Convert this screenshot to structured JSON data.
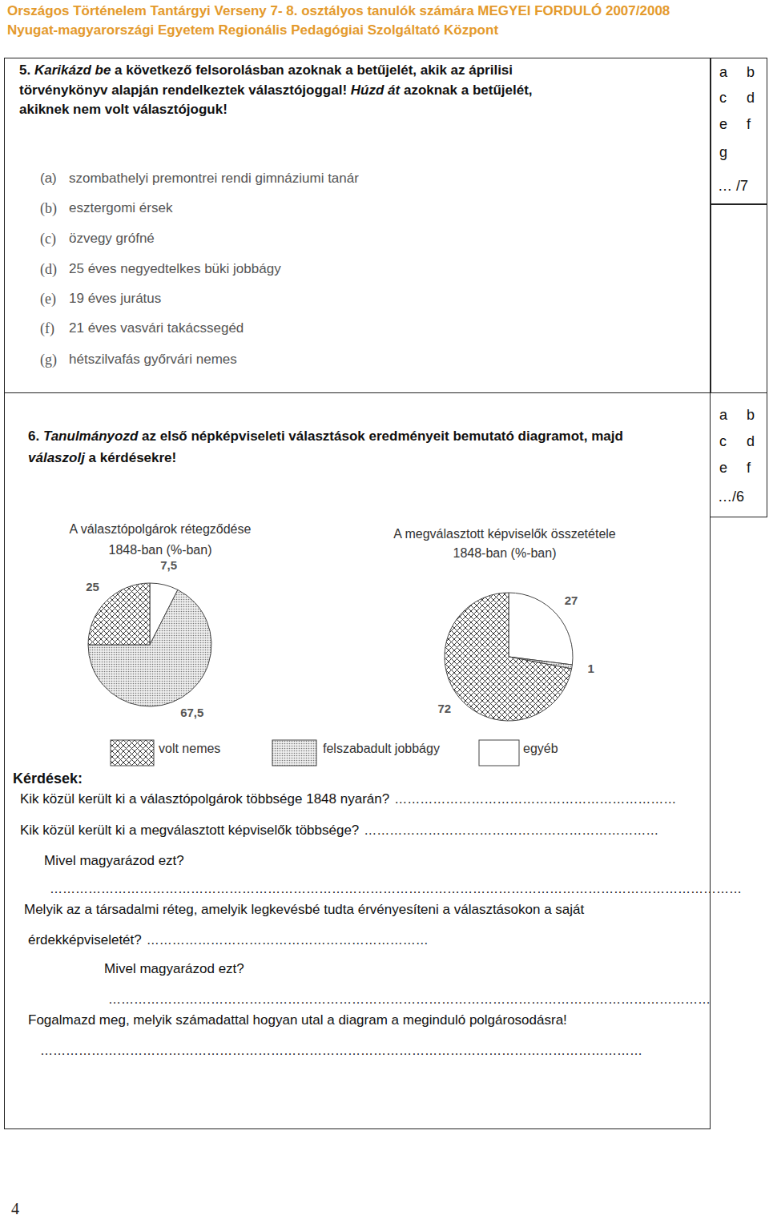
{
  "header": {
    "line1": "Országos Történelem Tantárgyi Verseny 7- 8. osztályos tanulók számára MEGYEI FORDULÓ 2007/2008",
    "line2": "Nyugat-magyarországi Egyetem Regionális Pedagógiai Szolgáltató Központ"
  },
  "task5": {
    "lines": [
      [
        {
          "text": "5. "
        },
        {
          "text": "Karikázd be",
          "em": true
        },
        {
          "text": " a következő felsorolásban azoknak a betűjelét, akik az áprilisi"
        }
      ],
      [
        {
          "text": "törvénykönyv alapján rendelkeztek választójoggal! "
        },
        {
          "text": "Húzd át",
          "em": true
        },
        {
          "text": " azoknak a betűjelét,"
        }
      ],
      [
        {
          "text": "akiknek nem volt választójoguk!"
        }
      ]
    ],
    "items": [
      {
        "letter": "(a)",
        "text": "szombathelyi premontrei rendi gimnáziumi tanár"
      },
      {
        "letter": "(b)",
        "text": "esztergomi érsek"
      },
      {
        "letter": "(c)",
        "text": "özvegy grófné"
      },
      {
        "letter": "(d)",
        "text": "25 éves negyedtelkes büki jobbágy"
      },
      {
        "letter": "(e)",
        "text": "19 éves jurátus"
      },
      {
        "letter": "(f)",
        "text": "21 éves vasvári takácssegéd"
      },
      {
        "letter": "(g)",
        "text": "hétszilvafás győrvári nemes"
      }
    ],
    "score": {
      "rows": [
        [
          "a",
          "b"
        ],
        [
          "c",
          "d"
        ],
        [
          "e",
          "f"
        ],
        [
          "g"
        ]
      ],
      "total": "… /7"
    }
  },
  "task6": {
    "lines": [
      [
        {
          "text": "6. "
        },
        {
          "text": "Tanulmányozd",
          "em": true
        },
        {
          "text": " az első népképviseleti választások eredményeit bemutató diagramot, majd"
        }
      ],
      [
        {
          "text": "válaszolj",
          "em": true
        },
        {
          "text": " a kérdésekre!"
        }
      ]
    ],
    "score": {
      "rows": [
        [
          "a",
          "b"
        ],
        [
          "c",
          "d"
        ],
        [
          "e",
          "f"
        ]
      ],
      "total": "…/6"
    },
    "questions": {
      "heading": "Kérdések:",
      "lines": [
        {
          "text": "Kik közül került ki a választópolgárok többsége 1848 nyarán?",
          "blank": "…………………………………………………………"
        },
        {
          "text": "Kik közül került ki a megválasztott képviselők többsége?",
          "blank": "……………………………………………………………"
        },
        {
          "text": "Mivel magyarázod ezt?"
        },
        {
          "blank": "………………………………………………………………………………………………………………………………………………"
        },
        {
          "text": "Melyik az a társadalmi réteg, amelyik  legkevésbé tudta érvényesíteni a választásokon a saját"
        },
        {
          "text": "érdekképviseletét?",
          "blank": "…………………………………………………………"
        },
        {
          "text": "Mivel magyarázod ezt?"
        },
        {
          "blank": "……………………………………………………………………………………………………………………………"
        },
        {
          "text": "Fogalmazd meg, melyik számadattal hogyan utal a diagram a meginduló polgárosodásra!"
        },
        {
          "blank": "……………………………………………………………………………………………………………………………"
        }
      ]
    }
  },
  "chart_data": [
    {
      "type": "pie",
      "title": "A választópolgárok rétegződése",
      "subtitle": "1848-ban (%-ban)",
      "categories": [
        "volt nemes",
        "felszabadult jobbágy",
        "egyéb"
      ],
      "values": [
        25,
        67.5,
        7.5
      ],
      "value_labels": [
        "25",
        "67,5",
        "7,5"
      ],
      "data_labels": true,
      "legend": "bottom"
    },
    {
      "type": "pie",
      "title": "A megválasztott képviselők összetétele",
      "subtitle": "1848-ban (%-ban)",
      "categories": [
        "volt nemes",
        "felszabadult jobbágy",
        "egyéb"
      ],
      "values": [
        72,
        1,
        27
      ],
      "data_labels": true
    }
  ],
  "page_number": "4"
}
